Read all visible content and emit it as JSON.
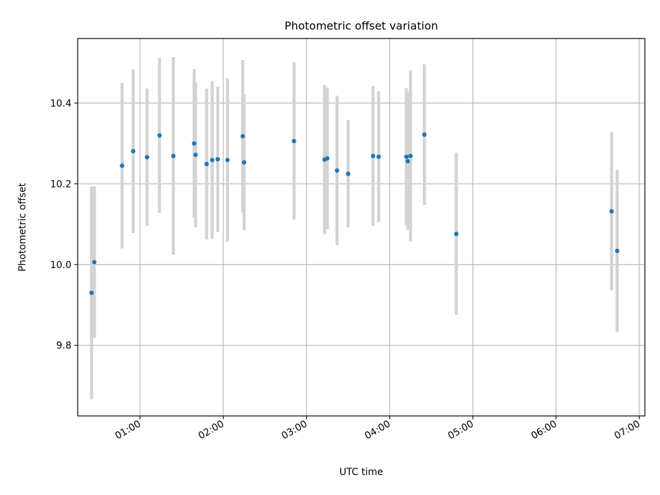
{
  "chart_data": {
    "type": "scatter",
    "title": "Photometric offset variation",
    "xlabel": "UTC time",
    "ylabel": "Photometric offset",
    "x_ticks": [
      "01:00",
      "02:00",
      "03:00",
      "04:00",
      "05:00",
      "06:00",
      "07:00"
    ],
    "y_ticks": [
      "9.8",
      "10.0",
      "10.2",
      "10.4"
    ],
    "y_tick_values": [
      9.8,
      10.0,
      10.2,
      10.4
    ],
    "xlim": [
      "00:15",
      "07:04"
    ],
    "ylim": [
      9.625,
      10.56
    ],
    "grid": true,
    "marker_color": "#1f77b4",
    "errorbar_color": "#d3d3d3",
    "points": [
      {
        "time": "00:25",
        "y": 9.93,
        "err": 0.263
      },
      {
        "time": "00:27",
        "y": 10.006,
        "err": 0.188
      },
      {
        "time": "00:47",
        "y": 10.245,
        "err": 0.205
      },
      {
        "time": "00:55",
        "y": 10.281,
        "err": 0.203
      },
      {
        "time": "01:05",
        "y": 10.266,
        "err": 0.17
      },
      {
        "time": "01:14",
        "y": 10.32,
        "err": 0.192
      },
      {
        "time": "01:24",
        "y": 10.269,
        "err": 0.245
      },
      {
        "time": "01:39",
        "y": 10.3,
        "err": 0.184
      },
      {
        "time": "01:40",
        "y": 10.272,
        "err": 0.18
      },
      {
        "time": "01:48",
        "y": 10.249,
        "err": 0.187
      },
      {
        "time": "01:52",
        "y": 10.259,
        "err": 0.195
      },
      {
        "time": "01:56",
        "y": 10.261,
        "err": 0.18
      },
      {
        "time": "02:03",
        "y": 10.259,
        "err": 0.202
      },
      {
        "time": "02:14",
        "y": 10.318,
        "err": 0.189
      },
      {
        "time": "02:15",
        "y": 10.253,
        "err": 0.168
      },
      {
        "time": "02:51",
        "y": 10.306,
        "err": 0.195
      },
      {
        "time": "03:13",
        "y": 10.26,
        "err": 0.185
      },
      {
        "time": "03:15",
        "y": 10.263,
        "err": 0.175
      },
      {
        "time": "03:22",
        "y": 10.233,
        "err": 0.185
      },
      {
        "time": "03:30",
        "y": 10.225,
        "err": 0.133
      },
      {
        "time": "03:48",
        "y": 10.269,
        "err": 0.173
      },
      {
        "time": "03:52",
        "y": 10.267,
        "err": 0.162
      },
      {
        "time": "04:12",
        "y": 10.267,
        "err": 0.17
      },
      {
        "time": "04:13",
        "y": 10.256,
        "err": 0.17
      },
      {
        "time": "04:15",
        "y": 10.269,
        "err": 0.212
      },
      {
        "time": "04:25",
        "y": 10.322,
        "err": 0.174
      },
      {
        "time": "04:48",
        "y": 10.076,
        "err": 0.201
      },
      {
        "time": "06:40",
        "y": 10.132,
        "err": 0.196
      },
      {
        "time": "06:44",
        "y": 10.034,
        "err": 0.201
      }
    ]
  }
}
